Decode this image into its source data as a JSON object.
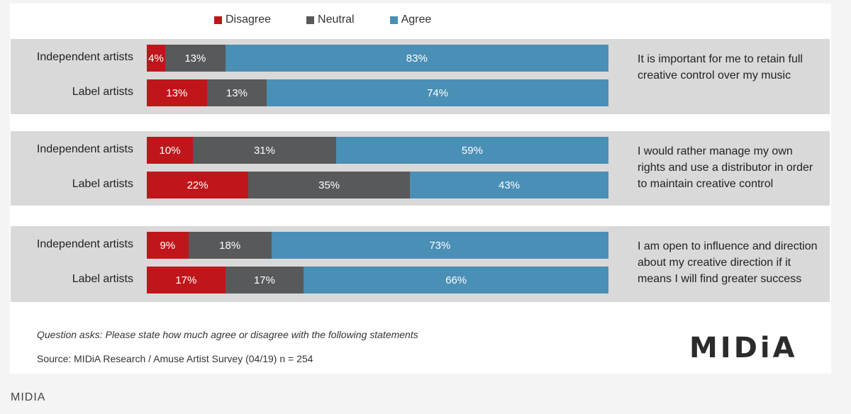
{
  "legend": [
    {
      "name": "Disagree",
      "color": "#c0161b"
    },
    {
      "name": "Neutral",
      "color": "#58595b"
    },
    {
      "name": "Agree",
      "color": "#4a8fb5"
    }
  ],
  "chart_data": {
    "type": "bar",
    "orientation": "horizontal",
    "stacked": true,
    "percent_scale": [
      0,
      100
    ],
    "legend_position": "top",
    "groups": [
      {
        "statement": "It is important for me to retain full creative control over my music",
        "rows": [
          {
            "label": "Independent artists",
            "values": {
              "Disagree": 4,
              "Neutral": 13,
              "Agree": 83
            }
          },
          {
            "label": "Label artists",
            "values": {
              "Disagree": 13,
              "Neutral": 13,
              "Agree": 74
            }
          }
        ]
      },
      {
        "statement": "I would rather manage my own rights and use a distributor in order to maintain creative control",
        "rows": [
          {
            "label": "Independent artists",
            "values": {
              "Disagree": 10,
              "Neutral": 31,
              "Agree": 59
            }
          },
          {
            "label": "Label artists",
            "values": {
              "Disagree": 22,
              "Neutral": 35,
              "Agree": 43
            }
          }
        ]
      },
      {
        "statement": "I am open to influence and direction about my creative direction if it means I will find greater success",
        "rows": [
          {
            "label": "Independent artists",
            "values": {
              "Disagree": 9,
              "Neutral": 18,
              "Agree": 73
            }
          },
          {
            "label": "Label artists",
            "values": {
              "Disagree": 17,
              "Neutral": 17,
              "Agree": 66
            }
          }
        ]
      }
    ]
  },
  "footer": {
    "note": "Question asks: Please state how much agree or disagree with the following statements",
    "source": "Source: MIDiA Research / Amuse Artist Survey (04/19) n = 254",
    "logo": "MIDiA"
  },
  "caption": "MIDIA"
}
